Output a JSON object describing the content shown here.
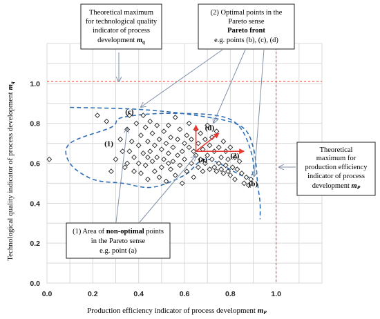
{
  "chart_data": {
    "type": "scatter",
    "xlabel": "Production efficiency indicator of process development",
    "xlabel_symbol": "m",
    "xlabel_sub": "P",
    "ylabel": "Technological quality indicator of process development",
    "ylabel_symbol": "m",
    "ylabel_sub": "q",
    "xlim": [
      0.0,
      1.2
    ],
    "ylim": [
      0.0,
      1.2
    ],
    "xticks": [
      "0.0",
      "0.2",
      "0.4",
      "0.6",
      "0.8",
      "1.0"
    ],
    "yticks": [
      "0.0",
      "0.2",
      "0.4",
      "0.6",
      "0.8",
      "1.0"
    ],
    "xtick_values": [
      0.0,
      0.2,
      0.4,
      0.6,
      0.8,
      1.0
    ],
    "ytick_values": [
      0.0,
      0.2,
      0.4,
      0.6,
      0.8,
      1.0
    ],
    "grid": true,
    "marker": "diamond",
    "reference_lines": {
      "x_max": 1.0,
      "y_max": 1.01,
      "color": "#e8382f"
    },
    "points": [
      [
        0.01,
        0.62
      ],
      [
        0.22,
        0.84
      ],
      [
        0.26,
        0.81
      ],
      [
        0.28,
        0.56
      ],
      [
        0.32,
        0.72
      ],
      [
        0.33,
        0.66
      ],
      [
        0.34,
        0.58
      ],
      [
        0.35,
        0.6
      ],
      [
        0.35,
        0.77
      ],
      [
        0.36,
        0.84
      ],
      [
        0.37,
        0.71
      ],
      [
        0.38,
        0.63
      ],
      [
        0.38,
        0.56
      ],
      [
        0.39,
        0.8
      ],
      [
        0.4,
        0.69
      ],
      [
        0.4,
        0.6
      ],
      [
        0.41,
        0.55
      ],
      [
        0.41,
        0.74
      ],
      [
        0.42,
        0.84
      ],
      [
        0.42,
        0.65
      ],
      [
        0.43,
        0.78
      ],
      [
        0.43,
        0.59
      ],
      [
        0.44,
        0.71
      ],
      [
        0.44,
        0.52
      ],
      [
        0.45,
        0.66
      ],
      [
        0.45,
        0.81
      ],
      [
        0.46,
        0.61
      ],
      [
        0.46,
        0.75
      ],
      [
        0.47,
        0.56
      ],
      [
        0.47,
        0.69
      ],
      [
        0.48,
        0.79
      ],
      [
        0.48,
        0.63
      ],
      [
        0.49,
        0.72
      ],
      [
        0.49,
        0.53
      ],
      [
        0.5,
        0.67
      ],
      [
        0.5,
        0.58
      ],
      [
        0.51,
        0.76
      ],
      [
        0.51,
        0.62
      ],
      [
        0.52,
        0.7
      ],
      [
        0.52,
        0.51
      ],
      [
        0.53,
        0.65
      ],
      [
        0.53,
        0.79
      ],
      [
        0.54,
        0.57
      ],
      [
        0.54,
        0.73
      ],
      [
        0.55,
        0.61
      ],
      [
        0.55,
        0.68
      ],
      [
        0.56,
        0.83
      ],
      [
        0.56,
        0.54
      ],
      [
        0.57,
        0.64
      ],
      [
        0.57,
        0.72
      ],
      [
        0.58,
        0.59
      ],
      [
        0.58,
        0.77
      ],
      [
        0.59,
        0.66
      ],
      [
        0.59,
        0.5
      ],
      [
        0.6,
        0.7
      ],
      [
        0.6,
        0.62
      ],
      [
        0.61,
        0.56
      ],
      [
        0.61,
        0.74
      ],
      [
        0.62,
        0.68
      ],
      [
        0.62,
        0.8
      ],
      [
        0.63,
        0.6
      ],
      [
        0.63,
        0.72
      ],
      [
        0.64,
        0.66
      ],
      [
        0.64,
        0.53
      ],
      [
        0.65,
        0.64
      ],
      [
        0.65,
        0.77
      ],
      [
        0.66,
        0.7
      ],
      [
        0.66,
        0.58
      ],
      [
        0.67,
        0.62
      ],
      [
        0.67,
        0.75
      ],
      [
        0.68,
        0.67
      ],
      [
        0.68,
        0.56
      ],
      [
        0.69,
        0.72
      ],
      [
        0.69,
        0.6
      ],
      [
        0.7,
        0.64
      ],
      [
        0.7,
        0.79
      ],
      [
        0.71,
        0.69
      ],
      [
        0.71,
        0.57
      ],
      [
        0.72,
        0.62
      ],
      [
        0.72,
        0.73
      ],
      [
        0.73,
        0.58
      ],
      [
        0.73,
        0.66
      ],
      [
        0.74,
        0.56
      ],
      [
        0.74,
        0.76
      ],
      [
        0.75,
        0.6
      ],
      [
        0.75,
        0.68
      ],
      [
        0.76,
        0.57
      ],
      [
        0.76,
        0.63
      ],
      [
        0.77,
        0.55
      ],
      [
        0.77,
        0.71
      ],
      [
        0.78,
        0.59
      ],
      [
        0.78,
        0.66
      ],
      [
        0.79,
        0.56
      ],
      [
        0.79,
        0.62
      ],
      [
        0.8,
        0.54
      ],
      [
        0.8,
        0.68
      ],
      [
        0.81,
        0.58
      ],
      [
        0.82,
        0.63
      ],
      [
        0.82,
        0.52
      ],
      [
        0.83,
        0.57
      ],
      [
        0.84,
        0.61
      ],
      [
        0.85,
        0.55
      ],
      [
        0.86,
        0.5
      ],
      [
        0.87,
        0.53
      ],
      [
        0.88,
        0.49
      ],
      [
        0.89,
        0.52
      ],
      [
        0.3,
        0.62
      ],
      [
        0.36,
        0.66
      ],
      [
        0.44,
        0.63
      ],
      [
        0.53,
        0.6
      ]
    ],
    "point_labels": [
      {
        "text": "(a)",
        "x": 0.68,
        "y": 0.62
      },
      {
        "text": "(b)",
        "x": 0.9,
        "y": 0.5
      },
      {
        "text": "(c)",
        "x": 0.36,
        "y": 0.86
      },
      {
        "text": "(d)",
        "x": 0.71,
        "y": 0.78
      },
      {
        "text": "(1)",
        "x": 0.27,
        "y": 0.7
      },
      {
        "text": "(2)",
        "x": 0.82,
        "y": 0.64
      }
    ],
    "vectors": {
      "color": "#e8382f",
      "origin": [
        0.65,
        0.66
      ],
      "targets": [
        [
          0.65,
          0.79
        ],
        [
          0.75,
          0.75
        ],
        [
          0.86,
          0.66
        ]
      ]
    },
    "regions": {
      "non_optimal": [
        [
          0.33,
          0.83
        ],
        [
          0.28,
          0.78
        ],
        [
          0.1,
          0.7
        ],
        [
          0.1,
          0.6
        ],
        [
          0.2,
          0.52
        ],
        [
          0.33,
          0.5
        ],
        [
          0.46,
          0.48
        ],
        [
          0.6,
          0.54
        ],
        [
          0.7,
          0.62
        ],
        [
          0.88,
          0.53
        ],
        [
          0.89,
          0.66
        ],
        [
          0.8,
          0.82
        ],
        [
          0.55,
          0.85
        ],
        [
          0.33,
          0.83
        ]
      ],
      "pareto_front": [
        [
          0.1,
          0.88
        ],
        [
          0.4,
          0.87
        ],
        [
          0.65,
          0.84
        ],
        [
          0.84,
          0.79
        ],
        [
          0.9,
          0.68
        ],
        [
          0.92,
          0.49
        ],
        [
          0.93,
          0.4
        ],
        [
          0.93,
          0.32
        ]
      ]
    },
    "annotations": {
      "q_max": {
        "lines": [
          "Theoretical maximum",
          "for technological quality",
          "indicator of process"
        ],
        "last_line": "development",
        "symbol": "m",
        "sub": "q"
      },
      "optimal": {
        "line1": "(2) Optimal points in the",
        "line2": "Pareto sense",
        "line3": "Pareto front",
        "line4": "e.g. points (b), (c), (d)"
      },
      "p_max": {
        "lines": [
          "Theoretical",
          "maximum for",
          "production efficiency",
          "indicator of process"
        ],
        "last_line": "development",
        "symbol": "m",
        "sub": "P"
      },
      "non_optimal": {
        "line1_prefix": "(1) Area of",
        "line1_bold": "non-optimal",
        "line1_suffix": "points",
        "line2": "in the Pareto sense",
        "line3": "e.g. point (a)"
      }
    }
  }
}
